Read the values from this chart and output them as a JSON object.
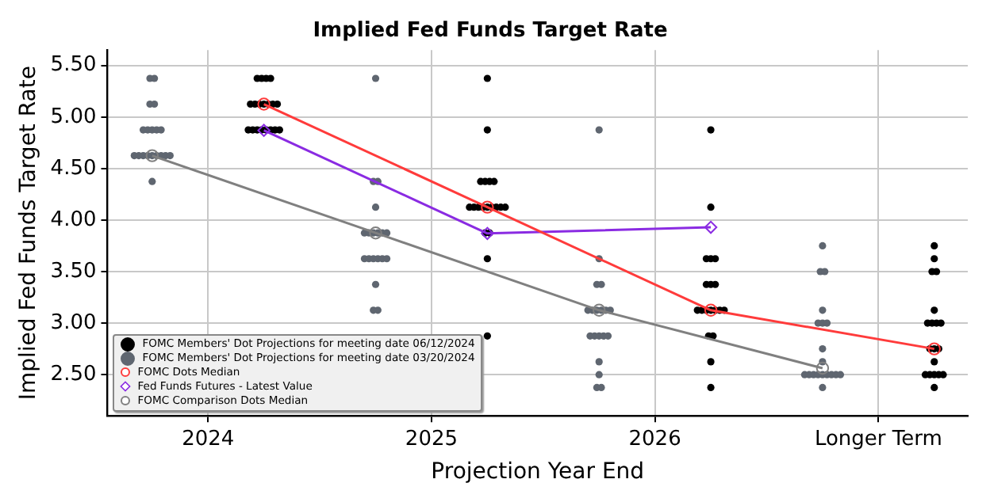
{
  "chart_data": {
    "type": "scatter",
    "title": "Implied Fed Funds Target Rate",
    "xlabel": "Projection Year End",
    "ylabel": "Implied Fed Funds Target Rate",
    "xlim": [
      2023.55,
      2027.4
    ],
    "xticks": [
      {
        "value": 2024,
        "label": "2024"
      },
      {
        "value": 2025,
        "label": "2025"
      },
      {
        "value": 2026,
        "label": "2026"
      },
      {
        "value": 2027,
        "label": "Longer Term"
      }
    ],
    "ylim": [
      2.1,
      5.65
    ],
    "yticks": [
      {
        "value": 2.5,
        "label": "2.50"
      },
      {
        "value": 3,
        "label": "3.00"
      },
      {
        "value": 3.5,
        "label": "3.50"
      },
      {
        "value": 4,
        "label": "4.00"
      },
      {
        "value": 4.5,
        "label": "4.50"
      },
      {
        "value": 5,
        "label": "5.00"
      },
      {
        "value": 5.5,
        "label": "5.50"
      }
    ],
    "grid": true,
    "legend": "bottom left",
    "series": [
      {
        "name": "FOMC Members' Dot Projections for meeting date 06/12/2024",
        "type": "scatter",
        "marker": "circle",
        "color": "#000000",
        "x": [
          2024.22,
          2024.24,
          2024.26,
          2024.28,
          2024.19,
          2024.21,
          2024.23,
          2024.25,
          2024.27,
          2024.29,
          2024.31,
          2024.18,
          2024.2,
          2024.22,
          2024.24,
          2024.26,
          2024.28,
          2024.3,
          2024.32,
          2025.25,
          2025.25,
          2025.22,
          2025.24,
          2025.26,
          2025.28,
          2025.17,
          2025.19,
          2025.21,
          2025.23,
          2025.25,
          2025.27,
          2025.29,
          2025.31,
          2025.33,
          2025.24,
          2025.26,
          2025.25,
          2025.25,
          2026.25,
          2026.25,
          2026.23,
          2026.25,
          2026.27,
          2026.23,
          2026.25,
          2026.27,
          2026.19,
          2026.21,
          2026.23,
          2026.25,
          2026.27,
          2026.29,
          2026.31,
          2026.24,
          2026.26,
          2026.25,
          2026.25,
          2027.25,
          2027.25,
          2027.24,
          2027.26,
          2027.25,
          2027.22,
          2027.24,
          2027.26,
          2027.28,
          2027.23,
          2027.25,
          2027.27,
          2027.25,
          2027.21,
          2027.23,
          2027.25,
          2027.27,
          2027.29,
          2027.25
        ],
        "values": [
          5.375,
          5.375,
          5.375,
          5.375,
          5.125,
          5.125,
          5.125,
          5.125,
          5.125,
          5.125,
          5.125,
          4.875,
          4.875,
          4.875,
          4.875,
          4.875,
          4.875,
          4.875,
          4.875,
          5.375,
          4.875,
          4.375,
          4.375,
          4.375,
          4.375,
          4.125,
          4.125,
          4.125,
          4.125,
          4.125,
          4.125,
          4.125,
          4.125,
          4.125,
          3.875,
          3.875,
          3.625,
          2.875,
          4.875,
          4.125,
          3.625,
          3.625,
          3.625,
          3.375,
          3.375,
          3.375,
          3.125,
          3.125,
          3.125,
          3.125,
          3.125,
          3.125,
          3.125,
          2.875,
          2.875,
          2.625,
          2.375,
          3.75,
          3.625,
          3.5,
          3.5,
          3.125,
          3,
          3,
          3,
          3,
          2.75,
          2.75,
          2.75,
          2.625,
          2.5,
          2.5,
          2.5,
          2.5,
          2.5,
          2.375
        ]
      },
      {
        "name": "FOMC Members' Dot Projections for meeting date 03/20/2024",
        "type": "scatter",
        "marker": "circle",
        "color": "#5f6670",
        "x": [
          2023.74,
          2023.76,
          2023.74,
          2023.76,
          2023.71,
          2023.73,
          2023.75,
          2023.77,
          2023.79,
          2023.67,
          2023.69,
          2023.71,
          2023.73,
          2023.75,
          2023.77,
          2023.79,
          2023.81,
          2023.83,
          2023.75,
          2024.75,
          2024.74,
          2024.76,
          2024.75,
          2024.7,
          2024.72,
          2024.74,
          2024.76,
          2024.78,
          2024.8,
          2024.7,
          2024.72,
          2024.74,
          2024.76,
          2024.78,
          2024.8,
          2024.75,
          2024.74,
          2024.76,
          2025.75,
          2025.75,
          2025.74,
          2025.76,
          2025.7,
          2025.72,
          2025.74,
          2025.76,
          2025.78,
          2025.8,
          2025.71,
          2025.73,
          2025.75,
          2025.77,
          2025.79,
          2025.75,
          2025.75,
          2025.74,
          2025.76,
          2026.75,
          2026.74,
          2026.76,
          2026.75,
          2026.73,
          2026.75,
          2026.77,
          2026.75,
          2026.75,
          2026.67,
          2026.69,
          2026.71,
          2026.73,
          2026.75,
          2026.77,
          2026.79,
          2026.81,
          2026.83,
          2026.75
        ],
        "values": [
          5.375,
          5.375,
          5.125,
          5.125,
          4.875,
          4.875,
          4.875,
          4.875,
          4.875,
          4.625,
          4.625,
          4.625,
          4.625,
          4.625,
          4.625,
          4.625,
          4.625,
          4.625,
          4.375,
          5.375,
          4.375,
          4.375,
          4.125,
          3.875,
          3.875,
          3.875,
          3.875,
          3.875,
          3.875,
          3.625,
          3.625,
          3.625,
          3.625,
          3.625,
          3.625,
          3.375,
          3.125,
          3.125,
          4.875,
          3.625,
          3.375,
          3.375,
          3.125,
          3.125,
          3.125,
          3.125,
          3.125,
          3.125,
          2.875,
          2.875,
          2.875,
          2.875,
          2.875,
          2.625,
          2.5,
          2.375,
          2.375,
          3.75,
          3.5,
          3.5,
          3.125,
          3,
          3,
          3,
          2.75,
          2.625,
          2.5,
          2.5,
          2.5,
          2.5,
          2.5,
          2.5,
          2.5,
          2.5,
          2.5,
          2.375
        ]
      },
      {
        "name": "FOMC Dots Median",
        "type": "line",
        "marker": "circle",
        "color": "#ff3b3b",
        "x": [
          2024.25,
          2025.25,
          2026.25,
          2027.25
        ],
        "values": [
          5.125,
          4.125,
          3.125,
          2.75
        ]
      },
      {
        "name": "Fed Funds Futures - Latest Value",
        "type": "line",
        "marker": "diamond",
        "color": "#8a2be2",
        "x": [
          2024.25,
          2025.25,
          2026.25
        ],
        "values": [
          4.87,
          3.87,
          3.93
        ]
      },
      {
        "name": "FOMC Comparison Dots Median",
        "type": "line",
        "marker": "circle",
        "color": "#808080",
        "x": [
          2023.75,
          2024.75,
          2025.75,
          2026.75
        ],
        "values": [
          4.625,
          3.875,
          3.125,
          2.5625
        ]
      }
    ]
  }
}
